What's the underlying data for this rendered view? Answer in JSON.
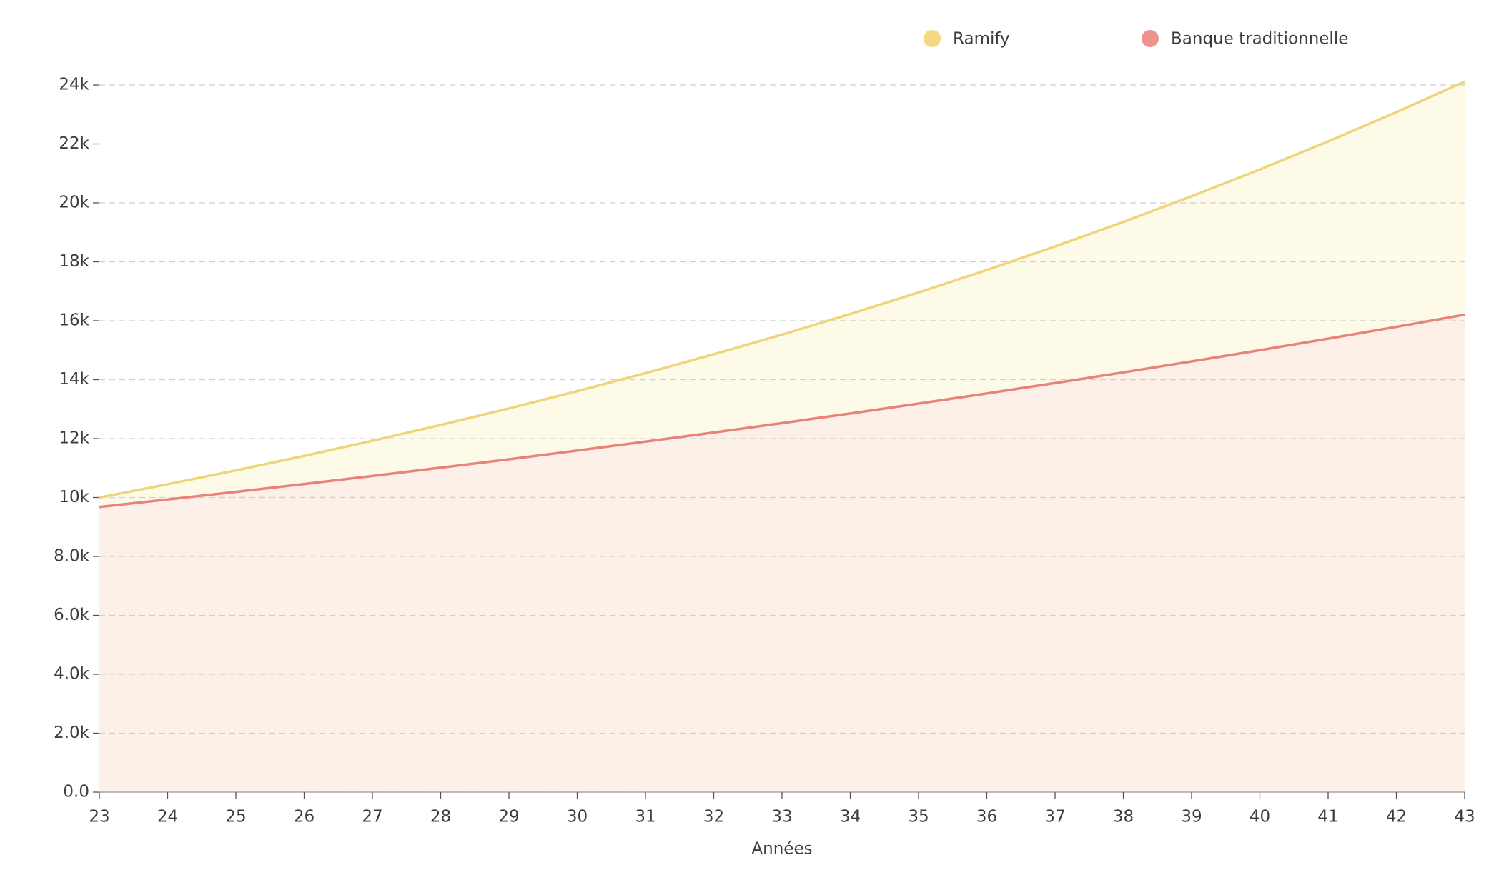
{
  "chart_data": {
    "type": "area",
    "x_label": "Années",
    "x": [
      23,
      24,
      25,
      26,
      27,
      28,
      29,
      30,
      31,
      32,
      33,
      34,
      35,
      36,
      37,
      38,
      39,
      40,
      41,
      42,
      43
    ],
    "xlim": [
      23,
      43
    ],
    "xticks": [
      23,
      24,
      25,
      26,
      27,
      28,
      29,
      30,
      31,
      32,
      33,
      34,
      35,
      36,
      37,
      38,
      39,
      40,
      41,
      42,
      43
    ],
    "ylim": [
      0,
      24000
    ],
    "yticks": [
      {
        "value": 0,
        "label": "0.0"
      },
      {
        "value": 2000,
        "label": "2.0k"
      },
      {
        "value": 4000,
        "label": "4.0k"
      },
      {
        "value": 6000,
        "label": "6.0k"
      },
      {
        "value": 8000,
        "label": "8.0k"
      },
      {
        "value": 10000,
        "label": "10k"
      },
      {
        "value": 12000,
        "label": "12k"
      },
      {
        "value": 14000,
        "label": "14k"
      },
      {
        "value": 16000,
        "label": "16k"
      },
      {
        "value": 18000,
        "label": "18k"
      },
      {
        "value": 20000,
        "label": "20k"
      },
      {
        "value": 22000,
        "label": "22k"
      },
      {
        "value": 24000,
        "label": "24k"
      }
    ],
    "grid": true,
    "legend_position": "top-right",
    "series": [
      {
        "name": "Ramify",
        "color": "#f0d47a",
        "fill": "#fdfbe8",
        "marker_color": "#f5d884",
        "values": [
          10000,
          10450,
          10920,
          11412,
          11925,
          12462,
          13023,
          13609,
          14221,
          14861,
          15530,
          16229,
          16959,
          17722,
          18520,
          19353,
          20224,
          21134,
          22085,
          23079,
          24117
        ]
      },
      {
        "name": "Banque traditionnelle",
        "color": "#e8827a",
        "fill": "#fcf0e8",
        "marker_color": "#ec9390",
        "values": [
          9680,
          9933,
          10192,
          10458,
          10731,
          11011,
          11298,
          11593,
          11896,
          12206,
          12525,
          12852,
          13187,
          13531,
          13884,
          14247,
          14618,
          15000,
          15391,
          15793,
          16205
        ]
      }
    ]
  }
}
